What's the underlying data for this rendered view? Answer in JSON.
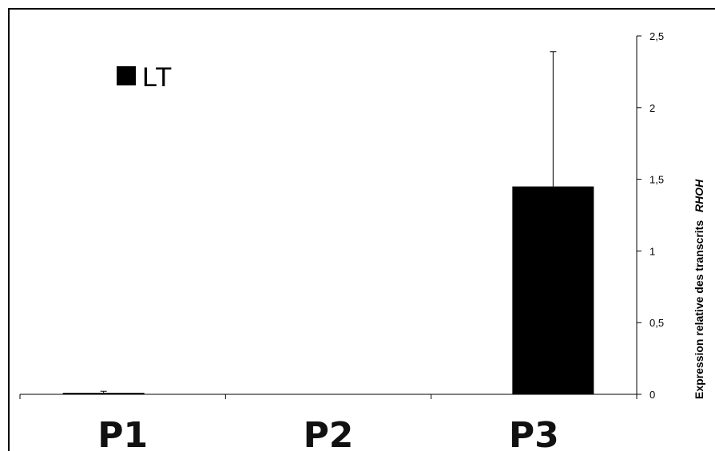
{
  "chart_data": {
    "type": "bar",
    "categories": [
      "P1",
      "P2",
      "P3"
    ],
    "series": [
      {
        "name": "LT",
        "values": [
          0.01,
          0.0,
          1.45
        ],
        "errors": [
          0.01,
          0.0,
          0.94
        ]
      }
    ],
    "ylabel_prefix": "Expression relative des transcrits",
    "ylabel_gene": "RHOH",
    "ylim": [
      0,
      2.5
    ],
    "yticks": [
      0,
      0.5,
      1,
      1.5,
      2,
      2.5
    ],
    "ytick_labels": [
      "0",
      "0,5",
      "1",
      "1,5",
      "2",
      "2,5"
    ],
    "y_axis_side": "right",
    "legend_position": "top-left",
    "bar_color": "#000000"
  }
}
